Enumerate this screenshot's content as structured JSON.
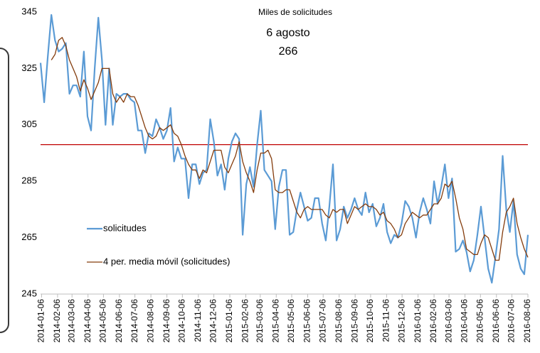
{
  "chart_data": {
    "type": "line",
    "annotations": [
      "Miles de solicitudes",
      "6 agosto",
      "266"
    ],
    "x": [
      "2014-01-04",
      "2014-01-11",
      "2014-01-18",
      "2014-01-25",
      "2014-02-01",
      "2014-02-08",
      "2014-02-15",
      "2014-02-22",
      "2014-03-01",
      "2014-03-08",
      "2014-03-15",
      "2014-03-22",
      "2014-03-29",
      "2014-04-05",
      "2014-04-12",
      "2014-04-19",
      "2014-04-26",
      "2014-05-03",
      "2014-05-10",
      "2014-05-17",
      "2014-05-24",
      "2014-05-31",
      "2014-06-07",
      "2014-06-14",
      "2014-06-21",
      "2014-06-28",
      "2014-07-05",
      "2014-07-12",
      "2014-07-19",
      "2014-07-26",
      "2014-08-02",
      "2014-08-09",
      "2014-08-16",
      "2014-08-23",
      "2014-08-30",
      "2014-09-06",
      "2014-09-13",
      "2014-09-20",
      "2014-09-27",
      "2014-10-04",
      "2014-10-11",
      "2014-10-18",
      "2014-10-25",
      "2014-11-01",
      "2014-11-08",
      "2014-11-15",
      "2014-11-22",
      "2014-11-29",
      "2014-12-06",
      "2014-12-13",
      "2014-12-20",
      "2014-12-27",
      "2015-01-03",
      "2015-01-10",
      "2015-01-17",
      "2015-01-24",
      "2015-01-31",
      "2015-02-07",
      "2015-02-14",
      "2015-02-21",
      "2015-02-28",
      "2015-03-07",
      "2015-03-14",
      "2015-03-21",
      "2015-03-28",
      "2015-04-04",
      "2015-04-11",
      "2015-04-18",
      "2015-04-25",
      "2015-05-02",
      "2015-05-09",
      "2015-05-16",
      "2015-05-23",
      "2015-05-30",
      "2015-06-06",
      "2015-06-13",
      "2015-06-20",
      "2015-06-27",
      "2015-07-04",
      "2015-07-11",
      "2015-07-18",
      "2015-07-25",
      "2015-08-01",
      "2015-08-08",
      "2015-08-15",
      "2015-08-22",
      "2015-08-29",
      "2015-09-05",
      "2015-09-12",
      "2015-09-19",
      "2015-09-26",
      "2015-10-03",
      "2015-10-10",
      "2015-10-17",
      "2015-10-24",
      "2015-10-31",
      "2015-11-07",
      "2015-11-14",
      "2015-11-21",
      "2015-11-28",
      "2015-12-05",
      "2015-12-12",
      "2015-12-19",
      "2015-12-26",
      "2016-01-02",
      "2016-01-09",
      "2016-01-16",
      "2016-01-23",
      "2016-01-30",
      "2016-02-06",
      "2016-02-13",
      "2016-02-20",
      "2016-02-27",
      "2016-03-05",
      "2016-03-12",
      "2016-03-19",
      "2016-03-26",
      "2016-04-02",
      "2016-04-09",
      "2016-04-16",
      "2016-04-23",
      "2016-04-30",
      "2016-05-07",
      "2016-05-14",
      "2016-05-21",
      "2016-05-28",
      "2016-06-04",
      "2016-06-11",
      "2016-06-18",
      "2016-06-25",
      "2016-07-02",
      "2016-07-09",
      "2016-07-16",
      "2016-07-23",
      "2016-07-30",
      "2016-08-06"
    ],
    "series": [
      {
        "name": "solicitudes",
        "color": "#5b9bd5",
        "values": [
          327,
          313,
          329,
          344,
          335,
          331,
          332,
          334,
          316,
          319,
          319,
          315,
          331,
          308,
          303,
          325,
          343,
          328,
          305,
          325,
          305,
          316,
          315,
          316,
          316,
          314,
          313,
          303,
          303,
          295,
          302,
          301,
          307,
          304,
          300,
          303,
          311,
          292,
          297,
          293,
          293,
          279,
          291,
          291,
          284,
          288,
          289,
          307,
          299,
          287,
          291,
          282,
          293,
          299,
          302,
          300,
          266,
          284,
          290,
          283,
          298,
          310,
          289,
          287,
          285,
          268,
          283,
          289,
          289,
          266,
          267,
          275,
          281,
          276,
          271,
          272,
          279,
          279,
          270,
          264,
          276,
          291,
          264,
          268,
          276,
          272,
          275,
          279,
          275,
          273,
          281,
          274,
          277,
          269,
          272,
          277,
          267,
          263,
          266,
          265,
          270,
          278,
          276,
          272,
          265,
          274,
          279,
          275,
          270,
          285,
          277,
          283,
          291,
          279,
          286,
          260,
          261,
          264,
          260,
          253,
          257,
          266,
          276,
          265,
          254,
          249,
          258,
          268,
          294,
          275,
          267,
          278,
          259,
          254,
          252,
          266
        ]
      },
      {
        "name": "4 per. media móvil (solicitudes)",
        "color": "#843c0c",
        "values": [
          null,
          null,
          null,
          328,
          330,
          335,
          336,
          333,
          328,
          325,
          322,
          317,
          321,
          318,
          314,
          317,
          320,
          325,
          325,
          325,
          316,
          313,
          315,
          313,
          316,
          315,
          315,
          312,
          308,
          304,
          301,
          300,
          301,
          304,
          303,
          304,
          305,
          302,
          301,
          298,
          294,
          291,
          289,
          289,
          286,
          289,
          288,
          292,
          296,
          296,
          296,
          290,
          288,
          291,
          294,
          299,
          292,
          288,
          285,
          281,
          289,
          295,
          295,
          296,
          293,
          282,
          281,
          281,
          282,
          282,
          278,
          274,
          272,
          275,
          276,
          275,
          275,
          275,
          275,
          273,
          272,
          275,
          274,
          275,
          275,
          270,
          273,
          276,
          275,
          276,
          277,
          276,
          276,
          275,
          273,
          274,
          271,
          270,
          268,
          265,
          266,
          270,
          272,
          274,
          273,
          272,
          273,
          273,
          275,
          277,
          277,
          279,
          284,
          283,
          285,
          279,
          272,
          268,
          261,
          260,
          259,
          259,
          263,
          266,
          265,
          261,
          257,
          257,
          267,
          274,
          276,
          279,
          270,
          265,
          261,
          258
        ]
      }
    ],
    "reference_line": {
      "value": 298,
      "color": "#c00000"
    },
    "xlim": [
      "2014-01-04",
      "2016-08-06"
    ],
    "xticks": [
      "2014-01-06",
      "2014-02-06",
      "2014-03-06",
      "2014-04-06",
      "2014-05-06",
      "2014-06-06",
      "2014-07-06",
      "2014-08-06",
      "2014-09-06",
      "2014-10-06",
      "2014-11-06",
      "2014-12-06",
      "2015-01-06",
      "2015-02-06",
      "2015-03-06",
      "2015-04-06",
      "2015-05-06",
      "2015-06-06",
      "2015-07-06",
      "2015-08-06",
      "2015-09-06",
      "2015-10-06",
      "2015-11-06",
      "2015-12-06",
      "2016-01-06",
      "2016-02-06",
      "2016-03-06",
      "2016-04-06",
      "2016-05-06",
      "2016-06-06",
      "2016-07-06",
      "2016-08-06"
    ],
    "ylim": [
      245,
      345
    ],
    "yticks": [
      245,
      265,
      285,
      305,
      325,
      345
    ],
    "grid": false
  }
}
